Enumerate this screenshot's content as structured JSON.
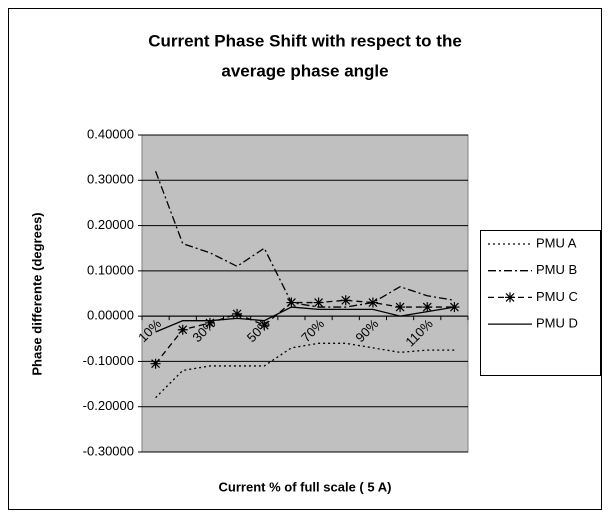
{
  "chart_data": {
    "type": "line",
    "title": [
      "Current Phase Shift with respect to the",
      "average phase angle"
    ],
    "x_label": "Current % of full scale ( 5 A)",
    "y_label": "Phase differente (degrees)",
    "categories": [
      "10%",
      null,
      "30%",
      null,
      "50%",
      null,
      "70%",
      null,
      "90%",
      null,
      "110%",
      null
    ],
    "ylim": [
      -0.3,
      0.4
    ],
    "yticks": [
      {
        "value": -0.3,
        "label": "-0.30000"
      },
      {
        "value": -0.2,
        "label": "-0.20000"
      },
      {
        "value": -0.1,
        "label": "-0.10000"
      },
      {
        "value": 0,
        "label": "0.00000"
      },
      {
        "value": 0.1,
        "label": "0.10000"
      },
      {
        "value": 0.2,
        "label": "0.20000"
      },
      {
        "value": 0.3,
        "label": "0.30000"
      },
      {
        "value": 0.4,
        "label": "0.40000"
      }
    ],
    "grid": true,
    "legend": "right",
    "series": [
      {
        "name": "PMU A",
        "color": "#000000",
        "dash": "2,3",
        "marker": "none",
        "values": [
          -0.18,
          -0.12,
          -0.11,
          -0.11,
          -0.11,
          -0.07,
          -0.06,
          -0.06,
          -0.07,
          -0.08,
          -0.075,
          -0.075
        ]
      },
      {
        "name": "PMU B",
        "color": "#000000",
        "dash": "8,3,2,3",
        "marker": "none",
        "values": [
          0.32,
          0.16,
          0.14,
          0.11,
          0.15,
          0.03,
          0.02,
          0.02,
          0.03,
          0.065,
          0.045,
          0.035
        ]
      },
      {
        "name": "PMU C",
        "color": "#000000",
        "dash": "6,4",
        "marker": "asterisk",
        "values": [
          -0.105,
          -0.03,
          -0.015,
          0.005,
          -0.02,
          0.03,
          0.03,
          0.035,
          0.03,
          0.02,
          0.02,
          0.02
        ]
      },
      {
        "name": "PMU D",
        "color": "#000000",
        "dash": "none",
        "marker": "none",
        "values": [
          -0.035,
          -0.01,
          -0.01,
          -0.005,
          -0.01,
          0.02,
          0.015,
          0.015,
          0.015,
          0.0,
          0.01,
          0.02
        ]
      }
    ]
  }
}
